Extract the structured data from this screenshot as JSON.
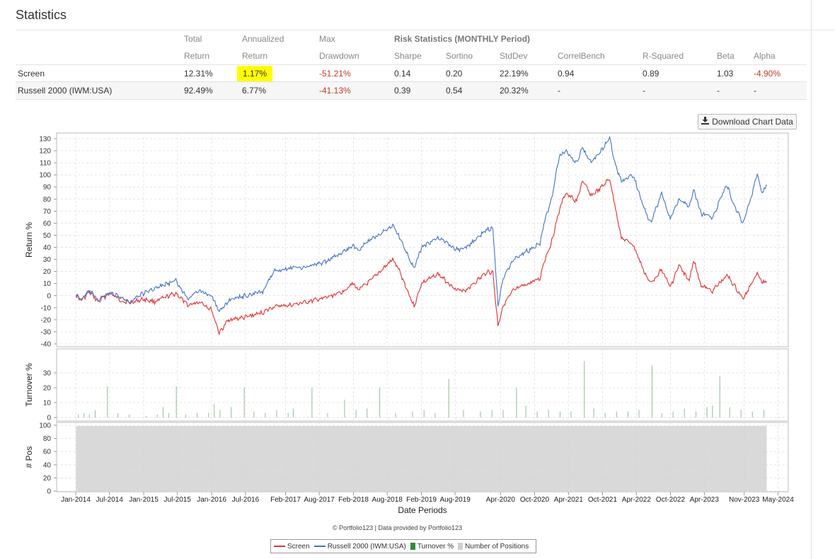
{
  "page": {
    "title": "Statistics"
  },
  "stats": {
    "header_top": {
      "total": "Total",
      "annualized": "Annualized",
      "max": "Max",
      "risk": "Risk Statistics (MONTHLY Period)"
    },
    "header_bottom": {
      "total": "Return",
      "annualized": "Return",
      "max": "Drawdown",
      "sharpe": "Sharpe",
      "sortino": "Sortino",
      "stddev": "StdDev",
      "correl": "CorrelBench",
      "rsq": "R-Squared",
      "beta": "Beta",
      "alpha": "Alpha"
    },
    "rows": [
      {
        "name": "Screen",
        "total": "12.31%",
        "annualized": "1.17%",
        "maxdd": "-51.21%",
        "sharpe": "0.14",
        "sortino": "0.20",
        "stddev": "22.19%",
        "correl": "0.94",
        "rsq": "0.89",
        "beta": "1.03",
        "alpha": "-4.90%"
      },
      {
        "name": "Russell 2000 (IWM:USA)",
        "total": "92.49%",
        "annualized": "6.77%",
        "maxdd": "-41.13%",
        "sharpe": "0.39",
        "sortino": "0.54",
        "stddev": "20.32%",
        "correl": "-",
        "rsq": "-",
        "beta": "-",
        "alpha": "-"
      }
    ],
    "highlight_color": "#ffff00"
  },
  "download_button": {
    "label": "Download Chart Data",
    "icon": "download-icon"
  },
  "credit": "© Portfolio123 | Data provided by Portfolio123",
  "colors": {
    "screen": "#e03030",
    "benchmark": "#4472c4",
    "turnover": "#2e8b3e",
    "positions": "#d0d0d0"
  },
  "chart_data": [
    {
      "type": "line",
      "ylabel": "Return %",
      "ylim": [
        -40,
        130
      ],
      "yticks": [
        -40,
        -30,
        -20,
        -10,
        0,
        10,
        20,
        30,
        40,
        50,
        60,
        70,
        80,
        90,
        100,
        110,
        120,
        130
      ],
      "grid": true,
      "series": [
        {
          "name": "Screen",
          "color": "#e03030",
          "points": [
            [
              "2014-01-02",
              0
            ],
            [
              "2014-02-01",
              -4
            ],
            [
              "2014-03-15",
              3
            ],
            [
              "2014-05-01",
              -5
            ],
            [
              "2014-07-01",
              2
            ],
            [
              "2014-09-01",
              -4
            ],
            [
              "2014-10-15",
              -6
            ],
            [
              "2014-12-31",
              -3
            ],
            [
              "2015-03-01",
              -5
            ],
            [
              "2015-06-23",
              2
            ],
            [
              "2015-08-25",
              -8
            ],
            [
              "2015-11-01",
              -5
            ],
            [
              "2016-01-01",
              -12
            ],
            [
              "2016-02-11",
              -31
            ],
            [
              "2016-04-01",
              -20
            ],
            [
              "2016-07-01",
              -18
            ],
            [
              "2016-10-01",
              -14
            ],
            [
              "2016-12-01",
              -9
            ],
            [
              "2017-03-01",
              -8
            ],
            [
              "2017-06-01",
              -5
            ],
            [
              "2017-09-01",
              -2
            ],
            [
              "2017-12-01",
              3
            ],
            [
              "2018-01-25",
              10
            ],
            [
              "2018-03-01",
              5
            ],
            [
              "2018-05-01",
              12
            ],
            [
              "2018-08-31",
              30
            ],
            [
              "2018-10-01",
              22
            ],
            [
              "2018-12-24",
              -9
            ],
            [
              "2019-02-01",
              10
            ],
            [
              "2019-04-30",
              18
            ],
            [
              "2019-08-15",
              4
            ],
            [
              "2019-10-01",
              5
            ],
            [
              "2019-12-31",
              17
            ],
            [
              "2020-01-20",
              20
            ],
            [
              "2020-02-20",
              19
            ],
            [
              "2020-03-18",
              -25
            ],
            [
              "2020-04-15",
              -8
            ],
            [
              "2020-06-08",
              4
            ],
            [
              "2020-08-01",
              8
            ],
            [
              "2020-10-30",
              14
            ],
            [
              "2020-11-20",
              28
            ],
            [
              "2021-01-01",
              45
            ],
            [
              "2021-02-10",
              70
            ],
            [
              "2021-03-15",
              85
            ],
            [
              "2021-05-15",
              78
            ],
            [
              "2021-06-15",
              95
            ],
            [
              "2021-08-01",
              83
            ],
            [
              "2021-09-15",
              88
            ],
            [
              "2021-11-08",
              97
            ],
            [
              "2021-12-10",
              72
            ],
            [
              "2022-01-10",
              48
            ],
            [
              "2022-03-15",
              42
            ],
            [
              "2022-05-12",
              20
            ],
            [
              "2022-06-16",
              10
            ],
            [
              "2022-08-15",
              22
            ],
            [
              "2022-09-30",
              7
            ],
            [
              "2022-11-15",
              25
            ],
            [
              "2023-01-10",
              12
            ],
            [
              "2023-02-02",
              30
            ],
            [
              "2023-03-15",
              8
            ],
            [
              "2023-05-15",
              4
            ],
            [
              "2023-07-31",
              17
            ],
            [
              "2023-09-01",
              10
            ],
            [
              "2023-10-27",
              -3
            ],
            [
              "2023-12-15",
              12
            ],
            [
              "2024-01-10",
              19
            ],
            [
              "2024-02-08",
              11
            ],
            [
              "2024-03-01",
              12
            ]
          ]
        },
        {
          "name": "Russell 2000 (IWM:USA)",
          "color": "#4472c4",
          "points": [
            [
              "2014-01-02",
              0
            ],
            [
              "2014-02-01",
              -3
            ],
            [
              "2014-03-15",
              4
            ],
            [
              "2014-05-01",
              -4
            ],
            [
              "2014-07-01",
              3
            ],
            [
              "2014-09-01",
              -2
            ],
            [
              "2014-10-15",
              -5
            ],
            [
              "2014-12-31",
              2
            ],
            [
              "2015-03-01",
              6
            ],
            [
              "2015-06-23",
              12
            ],
            [
              "2015-08-25",
              -2
            ],
            [
              "2015-11-01",
              4
            ],
            [
              "2016-01-01",
              0
            ],
            [
              "2016-02-11",
              -14
            ],
            [
              "2016-04-01",
              -4
            ],
            [
              "2016-07-01",
              0
            ],
            [
              "2016-10-01",
              3
            ],
            [
              "2016-12-01",
              20
            ],
            [
              "2017-03-01",
              23
            ],
            [
              "2017-06-01",
              24
            ],
            [
              "2017-09-01",
              28
            ],
            [
              "2017-12-01",
              35
            ],
            [
              "2018-01-25",
              41
            ],
            [
              "2018-03-01",
              38
            ],
            [
              "2018-05-01",
              46
            ],
            [
              "2018-08-31",
              58
            ],
            [
              "2018-10-01",
              50
            ],
            [
              "2018-12-24",
              22
            ],
            [
              "2019-02-01",
              40
            ],
            [
              "2019-04-30",
              48
            ],
            [
              "2019-08-15",
              38
            ],
            [
              "2019-10-01",
              40
            ],
            [
              "2019-12-31",
              52
            ],
            [
              "2020-01-20",
              55
            ],
            [
              "2020-02-20",
              56
            ],
            [
              "2020-03-18",
              -8
            ],
            [
              "2020-04-15",
              15
            ],
            [
              "2020-06-08",
              30
            ],
            [
              "2020-08-01",
              35
            ],
            [
              "2020-10-30",
              43
            ],
            [
              "2020-11-20",
              60
            ],
            [
              "2021-01-01",
              80
            ],
            [
              "2021-02-10",
              115
            ],
            [
              "2021-03-15",
              120
            ],
            [
              "2021-05-15",
              110
            ],
            [
              "2021-06-15",
              122
            ],
            [
              "2021-08-01",
              110
            ],
            [
              "2021-09-15",
              118
            ],
            [
              "2021-11-08",
              131
            ],
            [
              "2021-12-10",
              108
            ],
            [
              "2022-01-10",
              95
            ],
            [
              "2022-03-15",
              100
            ],
            [
              "2022-05-12",
              72
            ],
            [
              "2022-06-16",
              60
            ],
            [
              "2022-08-15",
              85
            ],
            [
              "2022-09-30",
              63
            ],
            [
              "2022-11-15",
              80
            ],
            [
              "2023-01-10",
              74
            ],
            [
              "2023-02-02",
              88
            ],
            [
              "2023-03-15",
              68
            ],
            [
              "2023-05-15",
              65
            ],
            [
              "2023-07-31",
              92
            ],
            [
              "2023-09-01",
              77
            ],
            [
              "2023-10-27",
              60
            ],
            [
              "2023-12-15",
              85
            ],
            [
              "2024-01-10",
              101
            ],
            [
              "2024-02-08",
              85
            ],
            [
              "2024-03-01",
              92
            ]
          ]
        }
      ]
    },
    {
      "type": "bar",
      "ylabel": "Turnover %",
      "ylim": [
        0,
        40
      ],
      "yticks": [
        0,
        10,
        20,
        30
      ],
      "grid": true,
      "series": [
        {
          "name": "Turnover %",
          "color": "#2e8b3e",
          "points": [
            [
              "2014-01-15",
              2
            ],
            [
              "2014-02-15",
              3
            ],
            [
              "2014-03-15",
              2
            ],
            [
              "2014-04-15",
              5
            ],
            [
              "2014-06-20",
              21
            ],
            [
              "2014-08-15",
              3
            ],
            [
              "2014-10-15",
              2
            ],
            [
              "2015-01-15",
              1
            ],
            [
              "2015-03-15",
              2
            ],
            [
              "2015-04-15",
              7
            ],
            [
              "2015-05-15",
              3
            ],
            [
              "2015-06-25",
              21
            ],
            [
              "2015-08-15",
              2
            ],
            [
              "2015-10-15",
              3
            ],
            [
              "2015-12-15",
              3
            ],
            [
              "2016-01-15",
              9
            ],
            [
              "2016-02-15",
              5
            ],
            [
              "2016-04-15",
              7
            ],
            [
              "2016-06-24",
              20
            ],
            [
              "2016-08-15",
              4
            ],
            [
              "2016-10-15",
              3
            ],
            [
              "2016-12-15",
              5
            ],
            [
              "2017-02-15",
              3
            ],
            [
              "2017-03-15",
              6
            ],
            [
              "2017-06-23",
              20
            ],
            [
              "2017-09-15",
              3
            ],
            [
              "2017-12-15",
              12
            ],
            [
              "2018-02-15",
              5
            ],
            [
              "2018-04-15",
              6
            ],
            [
              "2018-06-22",
              20
            ],
            [
              "2018-09-15",
              3
            ],
            [
              "2018-12-15",
              4
            ],
            [
              "2019-02-15",
              5
            ],
            [
              "2019-04-15",
              3
            ],
            [
              "2019-06-28",
              26
            ],
            [
              "2019-09-15",
              5
            ],
            [
              "2019-12-15",
              4
            ],
            [
              "2020-02-15",
              5
            ],
            [
              "2020-04-15",
              5
            ],
            [
              "2020-06-26",
              20
            ],
            [
              "2020-08-15",
              8
            ],
            [
              "2020-10-15",
              4
            ],
            [
              "2020-12-15",
              5
            ],
            [
              "2021-02-15",
              4
            ],
            [
              "2021-04-15",
              4
            ],
            [
              "2021-06-25",
              38
            ],
            [
              "2021-08-15",
              6
            ],
            [
              "2021-10-15",
              3
            ],
            [
              "2021-12-15",
              4
            ],
            [
              "2022-02-15",
              4
            ],
            [
              "2022-04-15",
              5
            ],
            [
              "2022-06-24",
              35
            ],
            [
              "2022-08-15",
              3
            ],
            [
              "2022-10-15",
              4
            ],
            [
              "2022-12-15",
              6
            ],
            [
              "2023-02-15",
              4
            ],
            [
              "2023-04-15",
              7
            ],
            [
              "2023-05-15",
              8
            ],
            [
              "2023-06-23",
              28
            ],
            [
              "2023-08-15",
              7
            ],
            [
              "2023-10-15",
              5
            ],
            [
              "2023-12-15",
              4
            ],
            [
              "2024-02-15",
              5
            ]
          ]
        }
      ]
    },
    {
      "type": "area",
      "ylabel": "# Pos",
      "ylim": [
        0,
        100
      ],
      "yticks": [
        0,
        20,
        40,
        60,
        80,
        100
      ],
      "grid": true,
      "series": [
        {
          "name": "Number of Positions",
          "color": "#d0d0d0",
          "points": [
            [
              "2014-01-02",
              99
            ],
            [
              "2024-03-01",
              99
            ]
          ]
        }
      ]
    }
  ],
  "x_axis": {
    "xlabel": "Date Periods",
    "range": [
      "2013-09-20",
      "2024-06-25"
    ],
    "ticks": [
      {
        "date": "2014-01-01",
        "label": "Jan-2014"
      },
      {
        "date": "2014-07-01",
        "label": "Jul-2014"
      },
      {
        "date": "2015-01-01",
        "label": "Jan-2015"
      },
      {
        "date": "2015-07-01",
        "label": "Jul-2015"
      },
      {
        "date": "2016-01-01",
        "label": "Jan-2016"
      },
      {
        "date": "2016-07-01",
        "label": "Jul-2016"
      },
      {
        "date": "2017-02-01",
        "label": "Feb-2017"
      },
      {
        "date": "2017-08-01",
        "label": "Aug-2017"
      },
      {
        "date": "2018-02-01",
        "label": "Feb-2018"
      },
      {
        "date": "2018-08-01",
        "label": "Aug-2018"
      },
      {
        "date": "2019-02-01",
        "label": "Feb-2019"
      },
      {
        "date": "2019-08-01",
        "label": "Aug-2019"
      },
      {
        "date": "2020-04-01",
        "label": "Apr-2020"
      },
      {
        "date": "2020-10-01",
        "label": "Oct-2020"
      },
      {
        "date": "2021-04-01",
        "label": "Apr-2021"
      },
      {
        "date": "2021-10-01",
        "label": "Oct-2021"
      },
      {
        "date": "2022-04-01",
        "label": "Apr-2022"
      },
      {
        "date": "2022-10-01",
        "label": "Oct-2022"
      },
      {
        "date": "2023-04-01",
        "label": "Apr-2023"
      },
      {
        "date": "2023-11-01",
        "label": "Nov-2023"
      },
      {
        "date": "2024-05-01",
        "label": "May-2024"
      }
    ]
  },
  "legend": [
    {
      "label": "Screen",
      "kind": "line",
      "color": "#e03030"
    },
    {
      "label": "Russell 2000 (IWM:USA)",
      "kind": "line",
      "color": "#4472c4"
    },
    {
      "label": "Turnover %",
      "kind": "square",
      "color": "#2e8b3e"
    },
    {
      "label": "Number of Positions",
      "kind": "square",
      "color": "#d0d0d0"
    }
  ]
}
